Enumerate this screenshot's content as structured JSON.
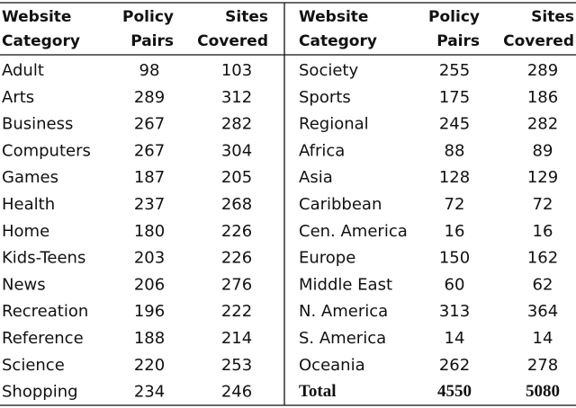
{
  "table": {
    "header": [
      [
        "Website",
        "Category"
      ],
      [
        "Policy",
        "Pairs"
      ],
      [
        "Sites",
        "Covered"
      ]
    ],
    "left_rows": [
      [
        "Adult",
        98,
        103
      ],
      [
        "Arts",
        289,
        312
      ],
      [
        "Business",
        267,
        282
      ],
      [
        "Computers",
        267,
        304
      ],
      [
        "Games",
        187,
        205
      ],
      [
        "Health",
        237,
        268
      ],
      [
        "Home",
        180,
        226
      ],
      [
        "Kids-Teens",
        203,
        226
      ],
      [
        "News",
        206,
        276
      ],
      [
        "Recreation",
        196,
        222
      ],
      [
        "Reference",
        188,
        214
      ],
      [
        "Science",
        220,
        253
      ],
      [
        "Shopping",
        234,
        246
      ]
    ],
    "right_rows": [
      [
        "Society",
        255,
        289
      ],
      [
        "Sports",
        175,
        186
      ],
      [
        "Regional",
        245,
        282
      ],
      [
        "Africa",
        88,
        89
      ],
      [
        "Asia",
        128,
        129
      ],
      [
        "Caribbean",
        72,
        72
      ],
      [
        "Cen. America",
        16,
        16
      ],
      [
        "Europe",
        150,
        162
      ],
      [
        "Middle East",
        60,
        62
      ],
      [
        "N. America",
        313,
        364
      ],
      [
        "S. America",
        14,
        14
      ],
      [
        "Oceania",
        262,
        278
      ]
    ],
    "total_row": [
      "Total",
      4550,
      5080
    ]
  }
}
